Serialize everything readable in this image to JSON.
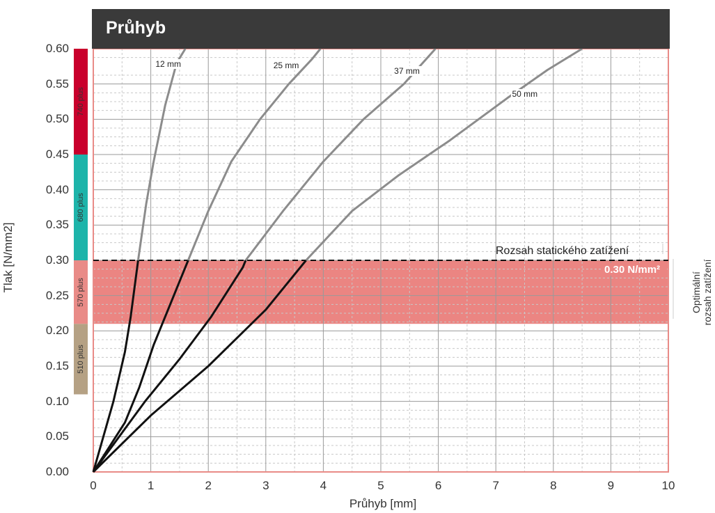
{
  "title": "Průhyb",
  "chart_data": {
    "type": "line",
    "xlabel": "Průhyb [mm]",
    "ylabel": "Tlak [N/mm2]",
    "xlim": [
      0,
      10
    ],
    "ylim": [
      0,
      0.6
    ],
    "x_ticks": [
      "0",
      "1",
      "2",
      "3",
      "4",
      "5",
      "6",
      "7",
      "8",
      "9",
      "10"
    ],
    "y_ticks": [
      "0.00",
      "0.05",
      "0.10",
      "0.15",
      "0.20",
      "0.25",
      "0.30",
      "0.35",
      "0.40",
      "0.45",
      "0.50",
      "0.55",
      "0.60"
    ],
    "grid": true,
    "series": [
      {
        "name": "12 mm",
        "points": [
          [
            0,
            0
          ],
          [
            0.35,
            0.1
          ],
          [
            0.55,
            0.17
          ],
          [
            0.65,
            0.22
          ],
          [
            0.78,
            0.3
          ],
          [
            0.92,
            0.38
          ],
          [
            1.05,
            0.44
          ],
          [
            1.25,
            0.52
          ],
          [
            1.45,
            0.58
          ],
          [
            1.6,
            0.6
          ]
        ]
      },
      {
        "name": "25 mm",
        "points": [
          [
            0,
            0
          ],
          [
            0.55,
            0.07
          ],
          [
            0.8,
            0.12
          ],
          [
            1.05,
            0.18
          ],
          [
            1.35,
            0.24
          ],
          [
            1.65,
            0.3
          ],
          [
            2.0,
            0.37
          ],
          [
            2.4,
            0.44
          ],
          [
            2.9,
            0.5
          ],
          [
            3.4,
            0.55
          ],
          [
            3.8,
            0.585
          ],
          [
            3.95,
            0.6
          ]
        ]
      },
      {
        "name": "37 mm",
        "points": [
          [
            0,
            0
          ],
          [
            0.9,
            0.1
          ],
          [
            1.5,
            0.16
          ],
          [
            2.05,
            0.22
          ],
          [
            2.6,
            0.29
          ],
          [
            2.65,
            0.3
          ],
          [
            3.3,
            0.37
          ],
          [
            4.0,
            0.44
          ],
          [
            4.7,
            0.5
          ],
          [
            5.4,
            0.55
          ],
          [
            5.95,
            0.6
          ]
        ]
      },
      {
        "name": "50 mm",
        "points": [
          [
            0,
            0
          ],
          [
            1.0,
            0.08
          ],
          [
            2.0,
            0.15
          ],
          [
            3.0,
            0.23
          ],
          [
            3.7,
            0.3
          ],
          [
            4.5,
            0.37
          ],
          [
            5.3,
            0.42
          ],
          [
            6.2,
            0.47
          ],
          [
            7.2,
            0.53
          ],
          [
            7.9,
            0.57
          ],
          [
            8.5,
            0.6
          ]
        ]
      }
    ],
    "thresholds": [
      0.3
    ],
    "optimal_band": [
      0.21,
      0.3
    ],
    "bands": [
      {
        "label": "510 plus",
        "from": 0.11,
        "to": 0.21,
        "color": "#b5a184"
      },
      {
        "label": "570 plus",
        "from": 0.21,
        "to": 0.3,
        "color": "#e98b87"
      },
      {
        "label": "680 plus",
        "from": 0.3,
        "to": 0.45,
        "color": "#1db4aa"
      },
      {
        "label": "740 plus",
        "from": 0.45,
        "to": 0.6,
        "color": "#c9002c"
      }
    ],
    "annotations": {
      "static_range": "Rozsah statického zatížení",
      "value_badge": "0.30 N/mm²",
      "optimal_range": "Optimální rozsah zatížení"
    }
  }
}
